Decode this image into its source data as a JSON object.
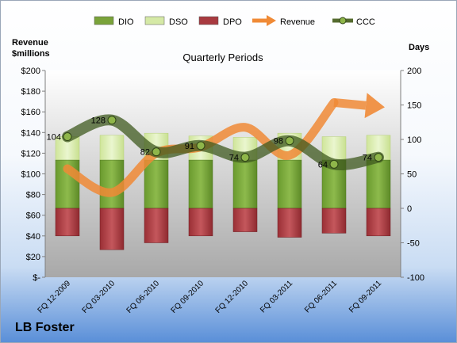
{
  "company": "LB Foster",
  "chart_data": {
    "type": "bar",
    "title": "Quarterly Periods",
    "ylabel_left": "Revenue\n$millions",
    "ylabel_right": "Days",
    "categories": [
      "FQ 12-2009",
      "FQ 03-2010",
      "FQ 06-2010",
      "FQ 09-2010",
      "FQ 12-2010",
      "FQ 03-2011",
      "FQ 06-2011",
      "FQ 09-2011"
    ],
    "left_axis": {
      "min": 0,
      "max": 200,
      "step": 20,
      "tick_labels": [
        "$-",
        "$20",
        "$40",
        "$60",
        "$80",
        "$100",
        "$120",
        "$140",
        "$160",
        "$180",
        "$200"
      ]
    },
    "right_axis": {
      "min": -100,
      "max": 200,
      "step": 50,
      "tick_labels": [
        "-100",
        "-50",
        "0",
        "50",
        "100",
        "150",
        "200"
      ]
    },
    "legend": {
      "position": "top",
      "items": [
        {
          "name": "DIO",
          "kind": "box",
          "color": "#7aa33a"
        },
        {
          "name": "DSO",
          "kind": "box",
          "color": "#d5e9a6"
        },
        {
          "name": "DPO",
          "kind": "box",
          "color": "#a83a40"
        },
        {
          "name": "Revenue",
          "kind": "arrow",
          "color": "#f08a36"
        },
        {
          "name": "CCC",
          "kind": "line",
          "color": "#556b2f"
        }
      ]
    },
    "series": [
      {
        "name": "DIO",
        "axis": "right",
        "values": [
          70,
          70,
          70,
          70,
          70,
          70,
          70,
          70
        ]
      },
      {
        "name": "DSO",
        "axis": "right",
        "values": [
          34,
          36,
          39,
          35,
          33,
          39,
          34,
          36
        ]
      },
      {
        "name": "DPO",
        "axis": "right",
        "values": [
          -40,
          -60,
          -50,
          -40,
          -34,
          -42,
          -36,
          -40
        ]
      },
      {
        "name": "Revenue",
        "axis": "left",
        "values": [
          105,
          82,
          120,
          126,
          145,
          118,
          169,
          165
        ]
      },
      {
        "name": "CCC",
        "axis": "right",
        "values": [
          104,
          128,
          82,
          91,
          74,
          98,
          64,
          74
        ],
        "labels": [
          "104",
          "128",
          "82",
          "91",
          "74",
          "98",
          "64",
          "74"
        ]
      }
    ],
    "grid": false
  }
}
